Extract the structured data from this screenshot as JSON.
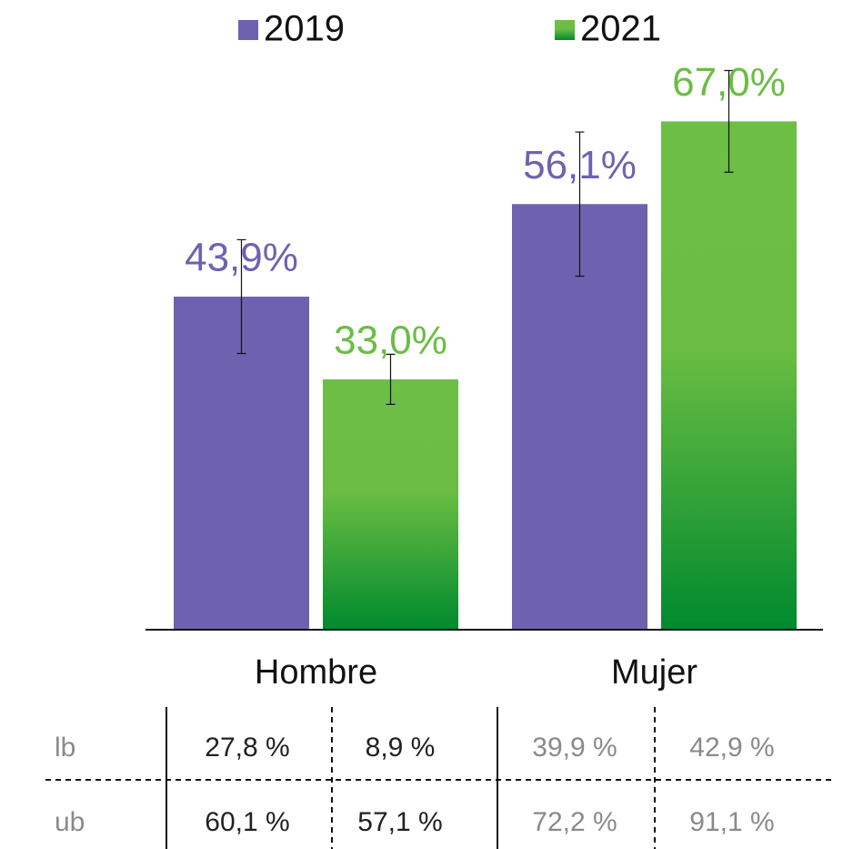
{
  "chart_data": {
    "type": "bar",
    "categories": [
      "Hombre",
      "Mujer"
    ],
    "series": [
      {
        "name": "2019",
        "color": "#6e62b0",
        "values": [
          43.9,
          56.1
        ],
        "value_labels": [
          "43,9%",
          "56,1%"
        ],
        "errors": [
          7.5,
          9.5
        ]
      },
      {
        "name": "2021",
        "color": "#6abd45",
        "values": [
          33.0,
          67.0
        ],
        "value_labels": [
          "33,0%",
          "67,0%"
        ],
        "errors": [
          3.3,
          6.7
        ]
      }
    ],
    "ylim": [
      0,
      80
    ]
  },
  "table": {
    "rows": [
      [
        "lb",
        "27,8 %",
        "8,9 %",
        "39,9 %",
        "42,9 %"
      ],
      [
        "ub",
        "60,1 %",
        "57,1 %",
        "72,2 %",
        "91,1 %"
      ]
    ]
  }
}
